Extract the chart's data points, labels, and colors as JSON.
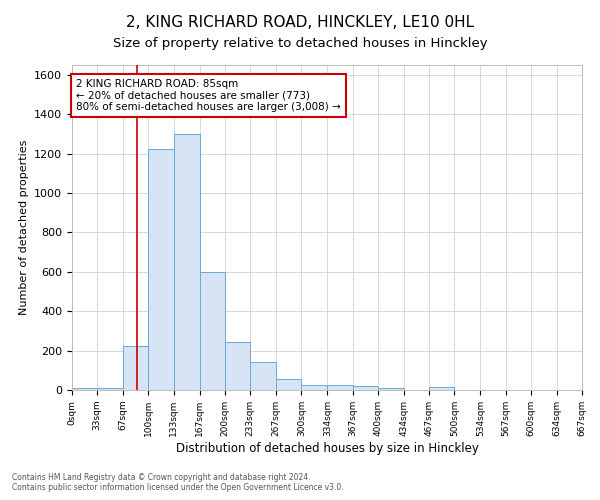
{
  "title": "2, KING RICHARD ROAD, HINCKLEY, LE10 0HL",
  "subtitle": "Size of property relative to detached houses in Hinckley",
  "xlabel": "Distribution of detached houses by size in Hinckley",
  "ylabel": "Number of detached properties",
  "footnote1": "Contains HM Land Registry data © Crown copyright and database right 2024.",
  "footnote2": "Contains public sector information licensed under the Open Government Licence v3.0.",
  "bar_edges": [
    0,
    33,
    67,
    100,
    133,
    167,
    200,
    233,
    267,
    300,
    334,
    367,
    400,
    434,
    467,
    500,
    534,
    567,
    600,
    634,
    667
  ],
  "bar_heights": [
    10,
    10,
    225,
    1225,
    1300,
    600,
    245,
    140,
    55,
    25,
    25,
    20,
    10,
    0,
    15,
    0,
    0,
    0,
    0,
    0
  ],
  "bar_color": "#d6e4f5",
  "bar_edgecolor": "#6aaad4",
  "property_size": 85,
  "vline_color": "#cc0000",
  "annotation_line1": "2 KING RICHARD ROAD: 85sqm",
  "annotation_line2": "← 20% of detached houses are smaller (773)",
  "annotation_line3": "80% of semi-detached houses are larger (3,008) →",
  "annotation_box_color": "#ffffff",
  "annotation_box_edgecolor": "#cc0000",
  "ylim": [
    0,
    1650
  ],
  "xlim": [
    0,
    667
  ],
  "grid_color": "#c8d4e0",
  "background_color": "#ffffff",
  "plot_bg_color": "#ffffff",
  "title_fontsize": 11,
  "subtitle_fontsize": 9.5,
  "tick_labels": [
    "0sqm",
    "33sqm",
    "67sqm",
    "100sqm",
    "133sqm",
    "167sqm",
    "200sqm",
    "233sqm",
    "267sqm",
    "300sqm",
    "334sqm",
    "367sqm",
    "400sqm",
    "434sqm",
    "467sqm",
    "500sqm",
    "534sqm",
    "567sqm",
    "600sqm",
    "634sqm",
    "667sqm"
  ]
}
